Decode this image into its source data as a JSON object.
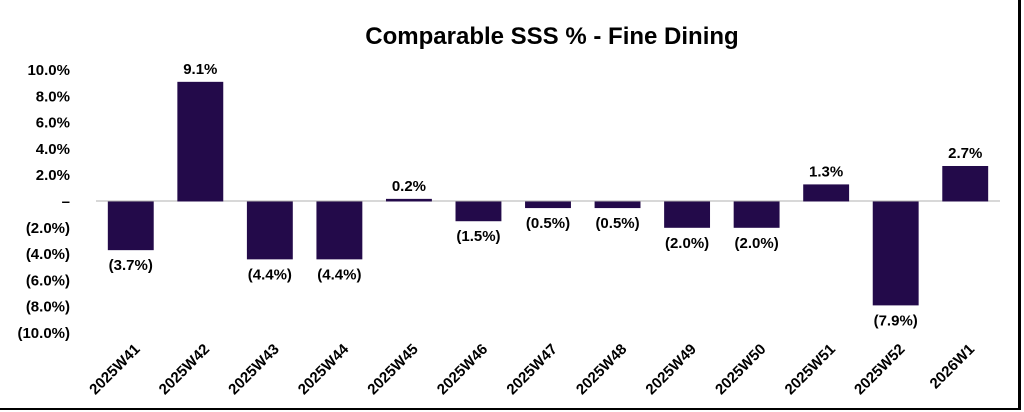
{
  "chart_data": {
    "type": "bar",
    "title": "Comparable SSS % - Fine Dining",
    "xlabel": "",
    "ylabel": "",
    "categories": [
      "2025W41",
      "2025W42",
      "2025W43",
      "2025W44",
      "2025W45",
      "2025W46",
      "2025W47",
      "2025W48",
      "2025W49",
      "2025W50",
      "2025W51",
      "2025W52",
      "2026W1"
    ],
    "values": [
      -3.7,
      9.1,
      -4.4,
      -4.4,
      0.2,
      -1.5,
      -0.5,
      -0.5,
      -2.0,
      -2.0,
      1.3,
      -7.9,
      2.7
    ],
    "data_labels": [
      "(3.7%)",
      "9.1%",
      "(4.4%)",
      "(4.4%)",
      "0.2%",
      "(1.5%)",
      "(0.5%)",
      "(0.5%)",
      "(2.0%)",
      "(2.0%)",
      "1.3%",
      "(7.9%)",
      "2.7%"
    ],
    "ylim": [
      -10,
      10
    ],
    "y_ticks": [
      10,
      8,
      6,
      4,
      2,
      0,
      -2,
      -4,
      -6,
      -8,
      -10
    ],
    "y_tick_labels": [
      "10.0%",
      "8.0%",
      "6.0%",
      "4.0%",
      "2.0%",
      "–",
      "(2.0%)",
      "(4.0%)",
      "(6.0%)",
      "(8.0%)",
      "(10.0%)"
    ],
    "bar_color": "#230a4a",
    "grid": false,
    "legend": "none"
  }
}
